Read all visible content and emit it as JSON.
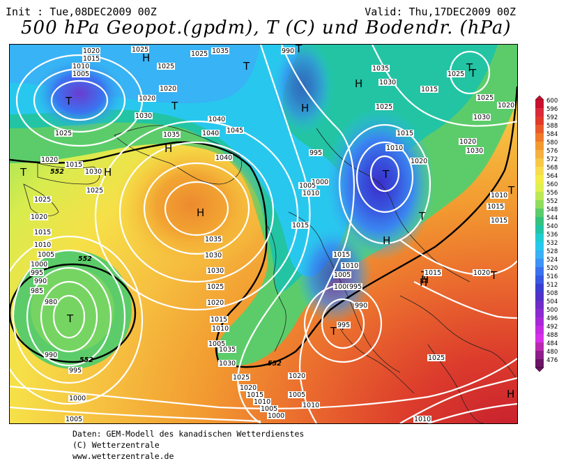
{
  "header": {
    "init": "Init : Tue,08DEC2009 00Z",
    "valid": "Valid: Thu,17DEC2009 00Z",
    "title": "500 hPa Geopot.(gpdm), T (C) und Bodendr. (hPa)"
  },
  "credits": {
    "line1": "Daten: GEM-Modell des kanadischen Wetterdienstes",
    "line2": "(C) Wetterzentrale",
    "line3": "www.wetterzentrale.de"
  },
  "colorbar": {
    "levels": [
      "600",
      "596",
      "592",
      "588",
      "584",
      "580",
      "576",
      "572",
      "568",
      "564",
      "560",
      "556",
      "552",
      "548",
      "544",
      "540",
      "536",
      "532",
      "528",
      "524",
      "520",
      "516",
      "512",
      "508",
      "504",
      "500",
      "496",
      "492",
      "488",
      "484",
      "480",
      "476"
    ],
    "colors": [
      "#c8102e",
      "#d92a3a",
      "#e03a2a",
      "#e85a2a",
      "#ee7a2a",
      "#f29a30",
      "#f5b040",
      "#f7c848",
      "#f8dc50",
      "#f4ec48",
      "#e0f050",
      "#bce855",
      "#8fdc5c",
      "#5ccc6a",
      "#34c27c",
      "#22c4a4",
      "#1fccd0",
      "#28c8ee",
      "#3ab0f5",
      "#3d92f5",
      "#3a72ee",
      "#3858e0",
      "#3a3ed0",
      "#5032c8",
      "#6e2cc8",
      "#8c2ad0",
      "#a828d8",
      "#c42ae0",
      "#d830e8",
      "#b82ab0",
      "#8e1e8a",
      "#6a1464"
    ]
  },
  "map": {
    "centers": [
      {
        "label": "T"
      },
      {
        "label": "H"
      },
      {
        "label": "T"
      },
      {
        "label": "H"
      },
      {
        "label": "H"
      },
      {
        "label": "T"
      },
      {
        "label": "H"
      },
      {
        "label": "T"
      },
      {
        "label": "T"
      },
      {
        "label": "H"
      },
      {
        "label": "T"
      },
      {
        "label": "T"
      },
      {
        "label": "T"
      },
      {
        "label": "H"
      },
      {
        "label": "T"
      },
      {
        "label": "H"
      },
      {
        "label": "T"
      },
      {
        "label": "T"
      },
      {
        "label": "T"
      },
      {
        "label": "T"
      },
      {
        "label": "T"
      },
      {
        "label": "H"
      },
      {
        "label": "H"
      },
      {
        "label": "T"
      },
      {
        "label": "H"
      }
    ],
    "isobar_labels": [
      "1020",
      "1015",
      "1010",
      "1005",
      "1025",
      "1025",
      "1025",
      "1020",
      "1030",
      "1025",
      "1035",
      "1020",
      "1040",
      "1045",
      "1040",
      "1015",
      "1035",
      "1040",
      "1020",
      "1025",
      "1030",
      "1025",
      "1020",
      "1015",
      "1010",
      "1005",
      "1000",
      "995",
      "990",
      "985",
      "980",
      "990",
      "995",
      "1000",
      "1005",
      "1030",
      "1035",
      "1030",
      "1025",
      "1020",
      "1015",
      "1010",
      "1005",
      "995",
      "1000",
      "1005",
      "1010",
      "1015",
      "1015",
      "1010",
      "1005",
      "1000",
      "995",
      "990",
      "995",
      "1000",
      "1005",
      "1010",
      "990",
      "1035",
      "1030",
      "1025",
      "1020",
      "1015",
      "1010",
      "1015",
      "1020",
      "1025",
      "1030",
      "1015",
      "1010",
      "1015",
      "1020",
      "1025",
      "1030",
      "1020",
      "1025",
      "1010",
      "1015",
      "1020",
      "1035",
      "1030",
      "1025",
      "1020",
      "1015",
      "1010",
      "1005",
      "1000"
    ],
    "contour_labels": [
      "552",
      "552",
      "552",
      "552"
    ]
  }
}
